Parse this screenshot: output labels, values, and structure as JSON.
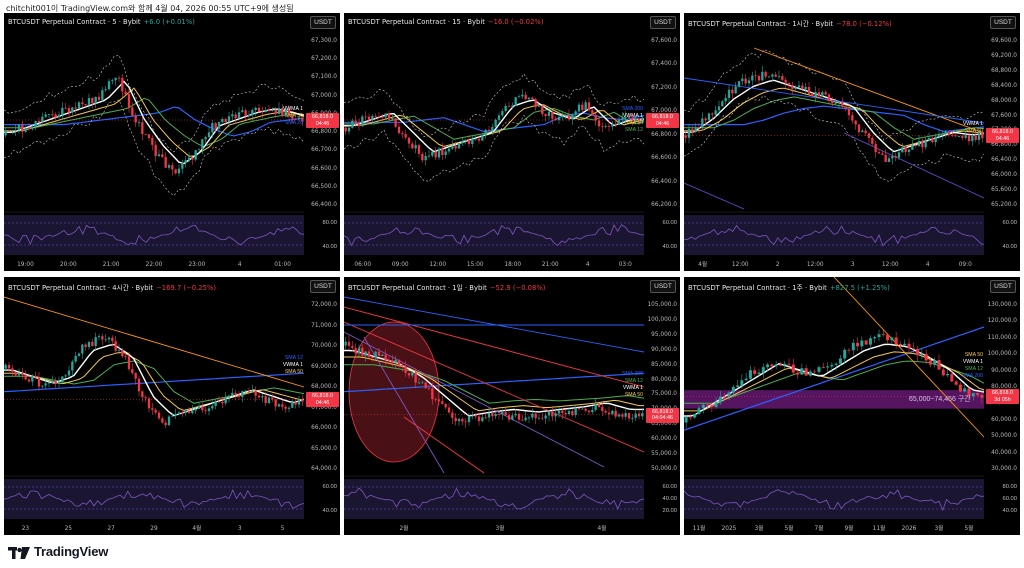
{
  "caption": "chitchit001이 TradingView.com와 함께 4월 04, 2026 00:55 UTC+9에 생성됨",
  "brand": "TradingView",
  "panels": [
    {
      "title": "BTCUSDT Perpetual Contract · 5 · Bybit",
      "change": "+6.0 (+0.01%)",
      "change_color": "#26a69a",
      "currency": "USDT",
      "price_label": "66,818.0",
      "countdown": "04:46",
      "yticks": [
        "67,300.0",
        "67,200.0",
        "67,100.0",
        "67,000.0",
        "66,900.0",
        "66,800.0",
        "66,700.0",
        "66,600.0",
        "66,500.0",
        "66,400.0"
      ],
      "xticks": [
        "19:00",
        "20:00",
        "21:00",
        "22:00",
        "23:00",
        "4",
        "01:00"
      ],
      "osc_ticks": [
        "80.00",
        "40.00"
      ],
      "ma_labels": [
        {
          "text": "VWMA 1",
          "color": "#ffffff"
        },
        {
          "text": "SMA 50",
          "color": "#f7c948"
        },
        {
          "text": "SMA 20",
          "color": "#2962ff"
        }
      ]
    },
    {
      "title": "BTCUSDT Perpetual Contract · 15 · Bybit",
      "change": "−16.0 (−0.02%)",
      "change_color": "#f23645",
      "currency": "USDT",
      "price_label": "66,818.0",
      "countdown": "04:46",
      "yticks": [
        "67,600.0",
        "67,400.0",
        "67,200.0",
        "67,000.0",
        "66,800.0",
        "66,600.0",
        "66,400.0",
        "66,200.0"
      ],
      "xticks": [
        "06:00",
        "09:00",
        "12:00",
        "15:00",
        "18:00",
        "21:00",
        "4",
        "03:0"
      ],
      "osc_ticks": [
        "60.00",
        "40.00"
      ],
      "ma_labels": [
        {
          "text": "SMA 200",
          "color": "#2962ff"
        },
        {
          "text": "VWMA 1",
          "color": "#ffffff"
        },
        {
          "text": "SMA 50",
          "color": "#f7c948"
        },
        {
          "text": "SMA 12",
          "color": "#4caf50"
        }
      ]
    },
    {
      "title": "BTCUSDT Perpetual Contract · 1시간 · Bybit",
      "change": "−78.0 (−0.12%)",
      "change_color": "#f23645",
      "currency": "USDT",
      "price_label": "66,818.0",
      "countdown": "04:46",
      "yticks": [
        "69,600.0",
        "69,200.0",
        "68,800.0",
        "68,400.0",
        "68,000.0",
        "67,600.0",
        "67,200.0",
        "66,800.0",
        "66,400.0",
        "66,000.0",
        "65,600.0",
        "65,200.0"
      ],
      "xticks": [
        "4월",
        "12:00",
        "2",
        "12:00",
        "3",
        "12:00",
        "4",
        "09:0"
      ],
      "osc_ticks": [
        "60.00",
        "40.00"
      ],
      "ma_labels": [
        {
          "text": "VWMA 1",
          "color": "#ffffff"
        },
        {
          "text": "SMA 50",
          "color": "#f7c948"
        }
      ]
    },
    {
      "title": "BTCUSDT Perpetual Contract · 4시간 · Bybit",
      "change": "−169.7 (−0.25%)",
      "change_color": "#f23645",
      "currency": "USDT",
      "price_label": "66,818.0",
      "countdown": "04:46",
      "yticks": [
        "72,000.0",
        "71,000.0",
        "70,000.0",
        "69,000.0",
        "68,000.0",
        "67,000.0",
        "66,000.0",
        "65,000.0",
        "64,000.0"
      ],
      "xticks": [
        "23",
        "25",
        "27",
        "29",
        "4월",
        "3",
        "5"
      ],
      "osc_ticks": [
        "60.00",
        "40.00"
      ],
      "ma_labels": [
        {
          "text": "SMA 12",
          "color": "#2962ff"
        },
        {
          "text": "VWMA 1",
          "color": "#ffffff"
        },
        {
          "text": "SMA 50",
          "color": "#f7c948"
        }
      ]
    },
    {
      "title": "BTCUSDT Perpetual Contract · 1일 · Bybit",
      "change": "−52.9 (−0.08%)",
      "change_color": "#f23645",
      "currency": "USDT",
      "price_label": "66,818.0",
      "countdown": "04:04:46",
      "yticks": [
        "105,000.0",
        "100,000.0",
        "95,000.0",
        "90,000.0",
        "85,000.0",
        "80,000.0",
        "75,000.0",
        "70,000.0",
        "65,000.0",
        "60,000.0",
        "55,000.0",
        "50,000.0"
      ],
      "xticks": [
        "2월",
        "3월",
        "4월"
      ],
      "osc_ticks": [
        "60.00",
        "40.00",
        "20.00"
      ],
      "ma_labels": [
        {
          "text": "SMA 200",
          "color": "#2962ff"
        },
        {
          "text": "SMA 12",
          "color": "#4caf50"
        },
        {
          "text": "VWMA 1",
          "color": "#ffffff"
        },
        {
          "text": "SMA 50",
          "color": "#f7c948"
        }
      ]
    },
    {
      "title": "BTCUSDT Perpetual Contract · 1주 · Bybit",
      "change": "+827.5 (+1.25%)",
      "change_color": "#26a69a",
      "currency": "USDT",
      "price_label": "66,818.0",
      "countdown": "3d 05h",
      "yticks": [
        "130,000.0",
        "120,000.0",
        "110,000.0",
        "100,000.0",
        "90,000.0",
        "80,000.0",
        "70,000.0",
        "60,000.0",
        "50,000.0",
        "40,000.0",
        "30,000.0"
      ],
      "xticks": [
        "11월",
        "2025",
        "3월",
        "5월",
        "7월",
        "9월",
        "11월",
        "2026",
        "3월",
        "5월"
      ],
      "osc_ticks": [
        "80.00",
        "60.00",
        "40.00"
      ],
      "zone_label": "65,000~74,456 구간",
      "ma_labels": [
        {
          "text": "SMA 50",
          "color": "#f7c948"
        },
        {
          "text": "VWMA 1",
          "color": "#ffffff"
        },
        {
          "text": "SMA 12",
          "color": "#4caf50"
        },
        {
          "text": "SMA 200",
          "color": "#2962ff"
        }
      ]
    }
  ]
}
